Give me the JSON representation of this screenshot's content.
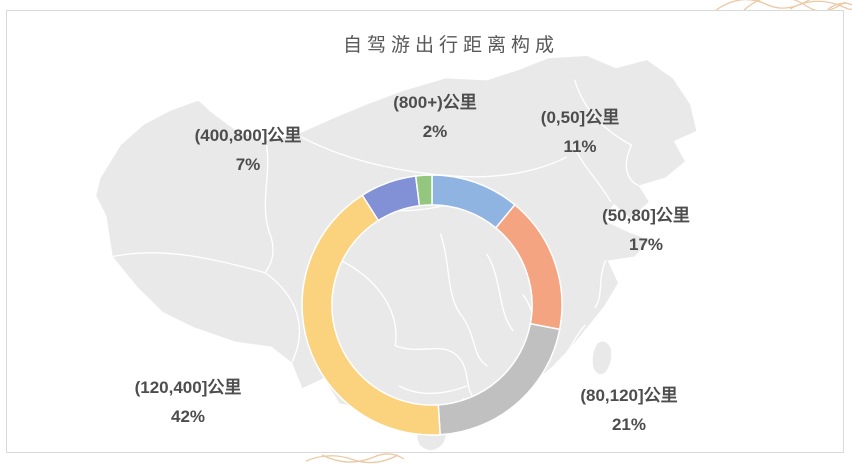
{
  "style": {
    "background": "#FFFFFF",
    "box_border": "#D9D9D9",
    "map_fill": "#E9E9E9",
    "map_line": "#FFFFFF",
    "title_color": "#595959",
    "label_color": "#4D4D4D",
    "decor_color": "#E8C096"
  },
  "chart_data": {
    "type": "pie",
    "subtype": "donut",
    "title": "自驾游出行距离构成",
    "categories": [
      "(0,50]公里",
      "(50,80]公里",
      "(80,120]公里",
      "(120,400]公里",
      "(400,800]公里",
      "(800+)公里"
    ],
    "values": [
      11,
      17,
      21,
      42,
      7,
      2
    ],
    "unit": "%",
    "value_labels": [
      "11%",
      "17%",
      "21%",
      "42%",
      "7%",
      "2%"
    ],
    "colors": [
      "#8FB4E2",
      "#F4A480",
      "#C0C0C0",
      "#FBD37F",
      "#8290D5",
      "#92C77D"
    ],
    "start_angle_deg": 0,
    "direction": "clockwise",
    "hole_ratio": 0.77,
    "legend_position": "none",
    "background": "map-of-china"
  }
}
